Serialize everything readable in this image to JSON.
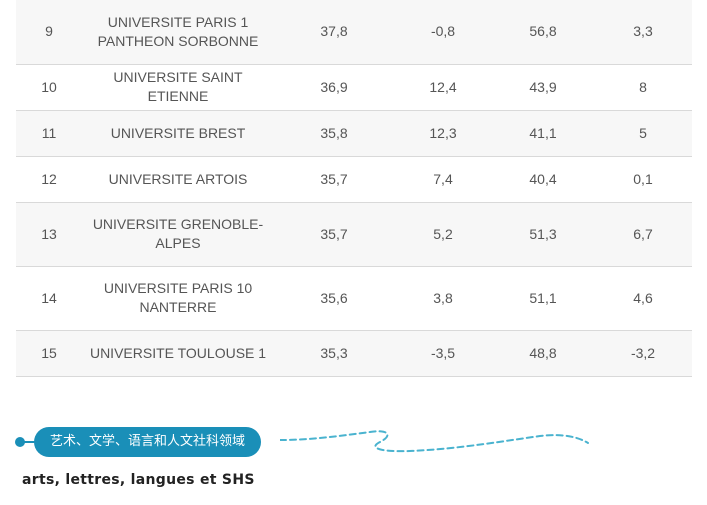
{
  "table": {
    "rows": [
      {
        "rank": "9",
        "name": "UNIVERSITE PARIS 1 PANTHEON SORBONNE",
        "v1": "37,8",
        "v2": "-0,8",
        "v3": "56,8",
        "v4": "3,3"
      },
      {
        "rank": "10",
        "name": "UNIVERSITE SAINT ETIENNE",
        "v1": "36,9",
        "v2": "12,4",
        "v3": "43,9",
        "v4": "8"
      },
      {
        "rank": "11",
        "name": "UNIVERSITE BREST",
        "v1": "35,8",
        "v2": "12,3",
        "v3": "41,1",
        "v4": "5"
      },
      {
        "rank": "12",
        "name": "UNIVERSITE ARTOIS",
        "v1": "35,7",
        "v2": "7,4",
        "v3": "40,4",
        "v4": "0,1"
      },
      {
        "rank": "13",
        "name": "UNIVERSITE GRENOBLE-ALPES",
        "v1": "35,7",
        "v2": "5,2",
        "v3": "51,3",
        "v4": "6,7"
      },
      {
        "rank": "14",
        "name": "UNIVERSITE PARIS 10 NANTERRE",
        "v1": "35,6",
        "v2": "3,8",
        "v3": "51,1",
        "v4": "4,6"
      },
      {
        "rank": "15",
        "name": "UNIVERSITE TOULOUSE 1",
        "v1": "35,3",
        "v2": "-3,5",
        "v3": "48,8",
        "v4": "-3,2"
      }
    ]
  },
  "section": {
    "tag_label": "艺术、文学、语言和人文社科领域",
    "subtitle": "arts, lettres, langues et SHS",
    "accent_color": "#1a8fb8"
  }
}
